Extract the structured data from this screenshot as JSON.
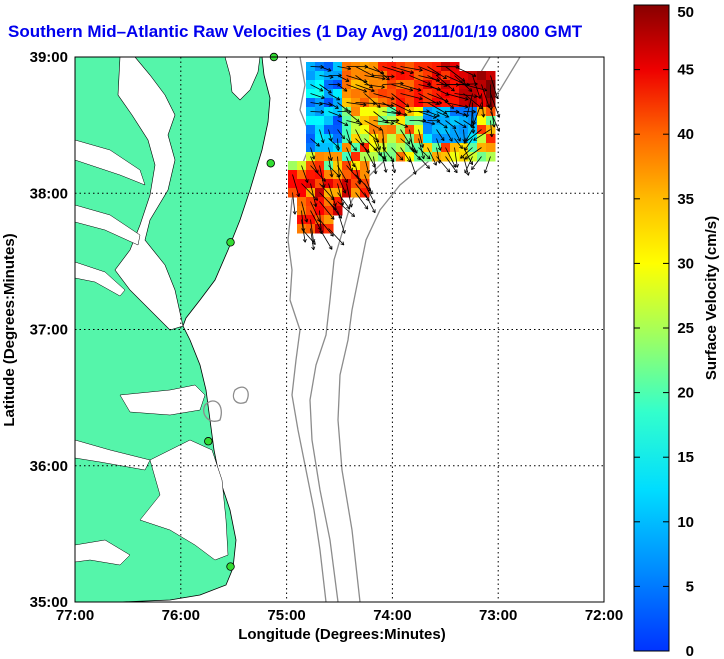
{
  "title": "Southern Mid–Atlantic Raw Velocities (1 Day Avg) 2011/01/19 0800 GMT",
  "chart_data": {
    "type": "heatmap",
    "x_label": "Longitude (Degrees:Minutes)",
    "y_label": "Latitude (Degrees:Minutes)",
    "x_ticks": [
      "77:00",
      "76:00",
      "75:00",
      "74:00",
      "73:00",
      "72:00"
    ],
    "y_ticks": [
      "39:00",
      "38:00",
      "37:00",
      "36:00",
      "35:00"
    ],
    "xlim": [
      -77,
      -72
    ],
    "ylim": [
      35,
      39
    ],
    "grid": "dotted",
    "colorbar": {
      "label": "Surface Velocity (cm/s)",
      "ticks": [
        "0",
        "5",
        "10",
        "15",
        "20",
        "25",
        "30",
        "35",
        "40",
        "45",
        "50"
      ],
      "range": [
        0,
        50
      ],
      "colormap": "jet"
    },
    "colors": {
      "land": "#55f5aa",
      "station": "#33dd33",
      "contour": "#8c8c8c",
      "title": "#0000ee"
    },
    "stations": [
      {
        "lon": -75.12,
        "lat": 39.0
      },
      {
        "lon": -75.15,
        "lat": 38.22
      },
      {
        "lon": -75.53,
        "lat": 37.64
      },
      {
        "lon": -75.74,
        "lat": 36.18
      },
      {
        "lon": -75.53,
        "lat": 35.26
      }
    ]
  }
}
